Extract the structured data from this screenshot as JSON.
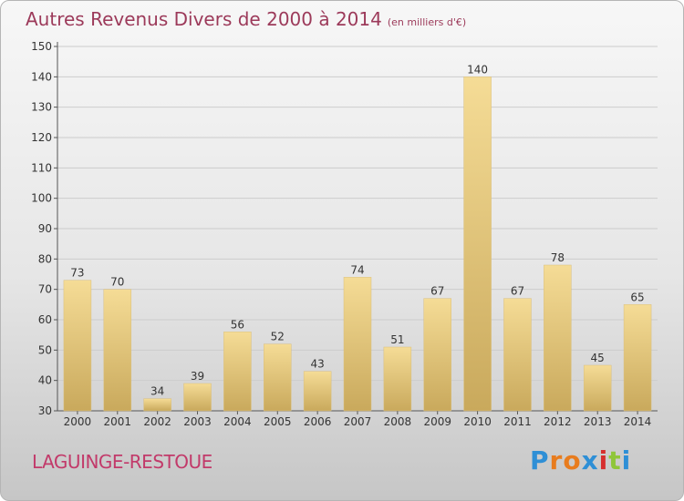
{
  "title": "Autres Revenus Divers de 2000 à 2014",
  "subtitle": "(en milliers d'€)",
  "location": "LAGUINGE-RESTOUE",
  "logo": {
    "text": "Proxiti",
    "letters": [
      "P",
      "r",
      "o",
      "x",
      "i",
      "t",
      "i"
    ],
    "colors": [
      "#2e8fd6",
      "#e87c1e",
      "#e87c1e",
      "#2e8fd6",
      "#d62e2e",
      "#8fc63a",
      "#2e8fd6"
    ]
  },
  "chart_data": {
    "type": "bar",
    "categories": [
      "2000",
      "2001",
      "2002",
      "2003",
      "2004",
      "2005",
      "2006",
      "2007",
      "2008",
      "2009",
      "2010",
      "2011",
      "2012",
      "2013",
      "2014"
    ],
    "values": [
      73,
      70,
      34,
      39,
      56,
      52,
      43,
      74,
      51,
      67,
      140,
      67,
      78,
      45,
      65
    ],
    "ylim": [
      30,
      150
    ],
    "yticks": [
      30,
      40,
      50,
      60,
      70,
      80,
      90,
      100,
      110,
      120,
      130,
      140,
      150
    ],
    "xlabel": "",
    "ylabel": "",
    "grid": true,
    "bar_color": "#e8c97a",
    "grid_color": "#cccccc"
  }
}
